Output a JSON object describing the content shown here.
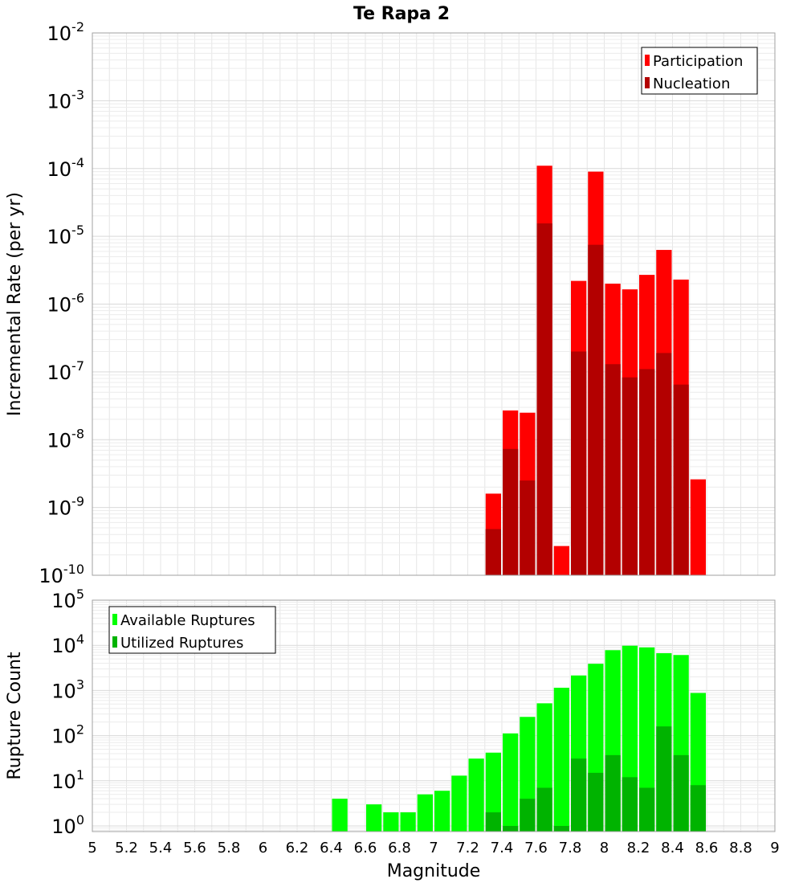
{
  "chart_data": [
    {
      "type": "bar",
      "title": "Te Rapa 2",
      "ylabel": "Incremental Rate (per yr)",
      "xlabel": "",
      "xlim": [
        5,
        9
      ],
      "ylim": [
        1e-10,
        0.01
      ],
      "yscale": "log",
      "bin_width": 0.1,
      "grid": true,
      "legend_position": "top-right",
      "y_tick_labels": [
        {
          "base": "10",
          "exp": "-10"
        },
        {
          "base": "10",
          "exp": "-9"
        },
        {
          "base": "10",
          "exp": "-8"
        },
        {
          "base": "10",
          "exp": "-7"
        },
        {
          "base": "10",
          "exp": "-6"
        },
        {
          "base": "10",
          "exp": "-5"
        },
        {
          "base": "10",
          "exp": "-4"
        },
        {
          "base": "10",
          "exp": "-3"
        },
        {
          "base": "10",
          "exp": "-2"
        }
      ],
      "x": [
        7.35,
        7.45,
        7.55,
        7.65,
        7.75,
        7.85,
        7.95,
        8.05,
        8.15,
        8.25,
        8.35,
        8.45,
        8.55
      ],
      "series": [
        {
          "name": "Participation",
          "color": "#ff0000",
          "values": [
            1.6e-09,
            2.7e-08,
            2.5e-08,
            0.00011,
            2.7e-10,
            2.2e-06,
            9e-05,
            2e-06,
            1.65e-06,
            2.7e-06,
            6.3e-06,
            2.3e-06,
            2.6e-09
          ]
        },
        {
          "name": "Nucleation",
          "color": "#b30000",
          "values": [
            4.8e-10,
            7.3e-09,
            2.5e-09,
            1.55e-05,
            null,
            2e-07,
            7.5e-06,
            1.3e-07,
            8.3e-08,
            1.1e-07,
            1.9e-07,
            6.5e-08,
            null
          ]
        }
      ]
    },
    {
      "type": "bar",
      "title": "",
      "ylabel": "Rupture Count",
      "xlabel": "Magnitude",
      "xlim": [
        5,
        9
      ],
      "ylim": [
        0.75,
        100000.0
      ],
      "yscale": "log",
      "bin_width": 0.1,
      "grid": true,
      "legend_position": "top-left",
      "x_tick_labels": [
        "5",
        "5.2",
        "5.4",
        "5.6",
        "5.8",
        "6",
        "6.2",
        "6.4",
        "6.6",
        "6.8",
        "7",
        "7.2",
        "7.4",
        "7.6",
        "7.8",
        "8",
        "8.2",
        "8.4",
        "8.6",
        "8.8",
        "9"
      ],
      "y_tick_labels": [
        {
          "base": "10",
          "exp": "0"
        },
        {
          "base": "10",
          "exp": "1"
        },
        {
          "base": "10",
          "exp": "2"
        },
        {
          "base": "10",
          "exp": "3"
        },
        {
          "base": "10",
          "exp": "4"
        },
        {
          "base": "10",
          "exp": "5"
        }
      ],
      "x": [
        6.45,
        6.55,
        6.65,
        6.75,
        6.85,
        6.95,
        7.05,
        7.15,
        7.25,
        7.35,
        7.45,
        7.55,
        7.65,
        7.75,
        7.85,
        7.95,
        8.05,
        8.15,
        8.25,
        8.35,
        8.45,
        8.55
      ],
      "series": [
        {
          "name": "Available Ruptures",
          "color": "#00ff00",
          "values": [
            4,
            0,
            3,
            2,
            2,
            5,
            6,
            13,
            31,
            42,
            112,
            260,
            520,
            1150,
            2150,
            3900,
            7800,
            9800,
            9000,
            6700,
            6100,
            880
          ]
        },
        {
          "name": "Utilized Ruptures",
          "color": "#00b300",
          "values": [
            null,
            null,
            null,
            null,
            null,
            null,
            null,
            null,
            null,
            2,
            1,
            4,
            7,
            1,
            31,
            15,
            37,
            12,
            7,
            160,
            37,
            8
          ]
        }
      ]
    }
  ]
}
